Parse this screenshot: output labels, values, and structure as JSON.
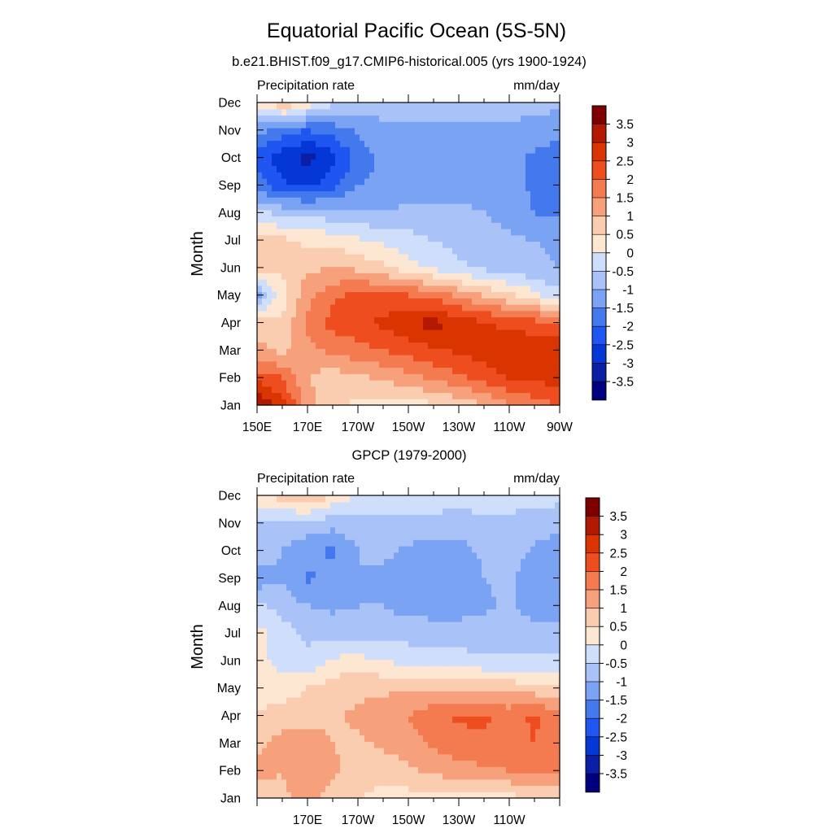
{
  "figure_title": "Equatorial Pacific Ocean (5S-5N)",
  "colors": {
    "levels": [
      -3.5,
      -3,
      -2.5,
      -2,
      -1.5,
      -1,
      -0.5,
      0,
      0.5,
      1,
      1.5,
      2,
      2.5,
      3,
      3.5
    ],
    "palette": [
      "#00007f",
      "#0a1fa6",
      "#0537d6",
      "#1f55f0",
      "#4479ee",
      "#7ba3f4",
      "#a9c2f7",
      "#cfdffb",
      "#fde6d2",
      "#fbcdb0",
      "#f6a07c",
      "#f47a50",
      "#ee4d20",
      "#da3500",
      "#b31800",
      "#7f0000"
    ]
  },
  "chart_data": [
    {
      "type": "heatmap",
      "title": "b.e21.BHIST.f09_g17.CMIP6-historical.005 (yrs 1900-1924)",
      "left_label": "Precipitation rate",
      "right_label": "mm/day",
      "ylabel": "Month",
      "xlabel": "",
      "x_tick_labels": [
        "150E",
        "170E",
        "170W",
        "150W",
        "130W",
        "110W",
        "90W"
      ],
      "y_tick_labels": [
        "Jan",
        "Feb",
        "Mar",
        "Apr",
        "May",
        "Jun",
        "Jul",
        "Aug",
        "Sep",
        "Oct",
        "Nov",
        "Dec"
      ],
      "colorbar_labels": [
        "3.5",
        "3",
        "2.5",
        "2",
        "1.5",
        "1",
        "0.5",
        "0",
        "-0.5",
        "-1",
        "-1.5",
        "-2",
        "-2.5",
        "-3",
        "-3.5"
      ],
      "longitudes_degE": [
        150,
        160,
        170,
        180,
        190,
        200,
        210,
        220,
        230,
        240,
        250,
        260,
        270
      ],
      "values_by_month": [
        [
          3.6,
          2.7,
          1.3,
          0.6,
          0.4,
          0.3,
          0.3,
          0.4,
          0.6,
          1.0,
          1.4,
          1.8,
          2.0
        ],
        [
          2.3,
          2.0,
          1.0,
          0.7,
          0.9,
          1.1,
          1.3,
          1.6,
          1.9,
          2.2,
          2.5,
          2.6,
          2.7
        ],
        [
          1.1,
          0.9,
          1.3,
          1.6,
          1.8,
          2.0,
          2.2,
          2.4,
          2.6,
          2.8,
          3.0,
          2.9,
          2.9
        ],
        [
          0.9,
          0.6,
          1.6,
          2.2,
          2.4,
          2.6,
          3.0,
          3.2,
          2.8,
          2.6,
          2.3,
          2.2,
          2.1
        ],
        [
          -1.2,
          0.3,
          1.3,
          1.9,
          2.1,
          2.2,
          2.0,
          1.8,
          1.4,
          1.0,
          0.6,
          0.2,
          -0.4
        ],
        [
          0.8,
          0.6,
          0.9,
          1.0,
          0.9,
          0.6,
          0.2,
          -0.1,
          -0.4,
          -0.6,
          -0.8,
          -0.9,
          -1.0
        ],
        [
          0.9,
          0.6,
          0.4,
          0.3,
          0.1,
          -0.1,
          -0.3,
          -0.5,
          -0.7,
          -0.8,
          -0.9,
          -1.0,
          -1.1
        ],
        [
          -0.4,
          -0.6,
          -0.7,
          -0.8,
          -0.9,
          -1.0,
          -0.9,
          -0.9,
          -0.9,
          -1.0,
          -1.2,
          -1.5,
          -1.6
        ],
        [
          -1.7,
          -2.4,
          -2.6,
          -2.2,
          -1.5,
          -1.3,
          -1.2,
          -1.2,
          -1.2,
          -1.2,
          -1.3,
          -1.6,
          -1.8
        ],
        [
          -2.2,
          -2.8,
          -3.2,
          -2.7,
          -1.8,
          -1.4,
          -1.2,
          -1.2,
          -1.2,
          -1.2,
          -1.3,
          -1.6,
          -1.8
        ],
        [
          -1.3,
          -1.8,
          -2.0,
          -1.8,
          -1.4,
          -1.2,
          -1.2,
          -1.2,
          -1.2,
          -1.1,
          -1.1,
          -1.2,
          -1.3
        ],
        [
          0.2,
          1.0,
          0.3,
          -0.4,
          -0.7,
          -0.7,
          -0.7,
          -0.6,
          -0.6,
          -0.7,
          -0.8,
          -0.8,
          -0.9
        ]
      ]
    },
    {
      "type": "heatmap",
      "title": "GPCP (1979-2000)",
      "left_label": "Precipitation rate",
      "right_label": "mm/day",
      "ylabel": "Month",
      "xlabel": "",
      "x_tick_labels": [
        "170E",
        "170W",
        "150W",
        "130W",
        "110W"
      ],
      "y_tick_labels": [
        "Jan",
        "Feb",
        "Mar",
        "Apr",
        "May",
        "Jun",
        "Jul",
        "Aug",
        "Sep",
        "Oct",
        "Nov",
        "Dec"
      ],
      "colorbar_labels": [
        "3.5",
        "3",
        "2.5",
        "2",
        "1.5",
        "1",
        "0.5",
        "0",
        "-0.5",
        "-1",
        "-1.5",
        "-2",
        "-2.5",
        "-3",
        "-3.5"
      ],
      "longitudes_degE": [
        150,
        160,
        170,
        180,
        190,
        200,
        210,
        220,
        230,
        240,
        250,
        260,
        270
      ],
      "values_by_month": [
        [
          0.6,
          0.9,
          1.2,
          0.8,
          0.5,
          0.3,
          0.3,
          0.3,
          0.2,
          0.1,
          0.3,
          0.5,
          0.6
        ],
        [
          1.2,
          1.0,
          1.4,
          1.1,
          0.8,
          0.7,
          0.9,
          1.1,
          1.3,
          1.4,
          1.5,
          1.6,
          1.6
        ],
        [
          0.9,
          1.2,
          1.3,
          1.0,
          0.9,
          1.1,
          1.3,
          1.6,
          1.8,
          1.9,
          1.8,
          2.0,
          1.7
        ],
        [
          0.5,
          0.8,
          0.8,
          0.9,
          1.1,
          1.2,
          1.5,
          1.8,
          2.1,
          2.1,
          1.8,
          2.1,
          1.7
        ],
        [
          0.3,
          0.2,
          0.5,
          0.8,
          0.9,
          0.9,
          1.0,
          1.0,
          1.0,
          0.9,
          0.8,
          0.7,
          0.6
        ],
        [
          0.2,
          -0.2,
          -0.4,
          0.1,
          0.2,
          0.0,
          -0.2,
          -0.3,
          -0.3,
          -0.4,
          -0.4,
          -0.4,
          -0.4
        ],
        [
          0.2,
          -0.3,
          -0.6,
          -0.7,
          -0.7,
          -0.7,
          -0.7,
          -0.8,
          -0.8,
          -0.7,
          -0.7,
          -0.7,
          -0.8
        ],
        [
          -0.4,
          -0.7,
          -1.0,
          -1.1,
          -1.0,
          -1.0,
          -1.2,
          -1.2,
          -1.2,
          -1.1,
          -0.9,
          -1.3,
          -1.4
        ],
        [
          -1.3,
          -1.1,
          -1.6,
          -1.3,
          -1.0,
          -1.1,
          -1.3,
          -1.4,
          -1.4,
          -1.0,
          -0.9,
          -1.3,
          -1.3
        ],
        [
          -0.6,
          -1.0,
          -1.3,
          -1.6,
          -1.0,
          -0.9,
          -1.1,
          -1.2,
          -1.2,
          -0.9,
          -0.7,
          -1.1,
          -1.2
        ],
        [
          -0.6,
          -0.7,
          -0.7,
          -0.8,
          -0.7,
          -0.7,
          -0.7,
          -0.7,
          -0.7,
          -0.6,
          -0.6,
          -0.8,
          -0.9
        ],
        [
          0.4,
          0.7,
          1.1,
          0.4,
          0.0,
          -0.2,
          -0.2,
          -0.2,
          -0.3,
          -0.3,
          -0.3,
          -0.3,
          -0.3
        ]
      ]
    }
  ]
}
